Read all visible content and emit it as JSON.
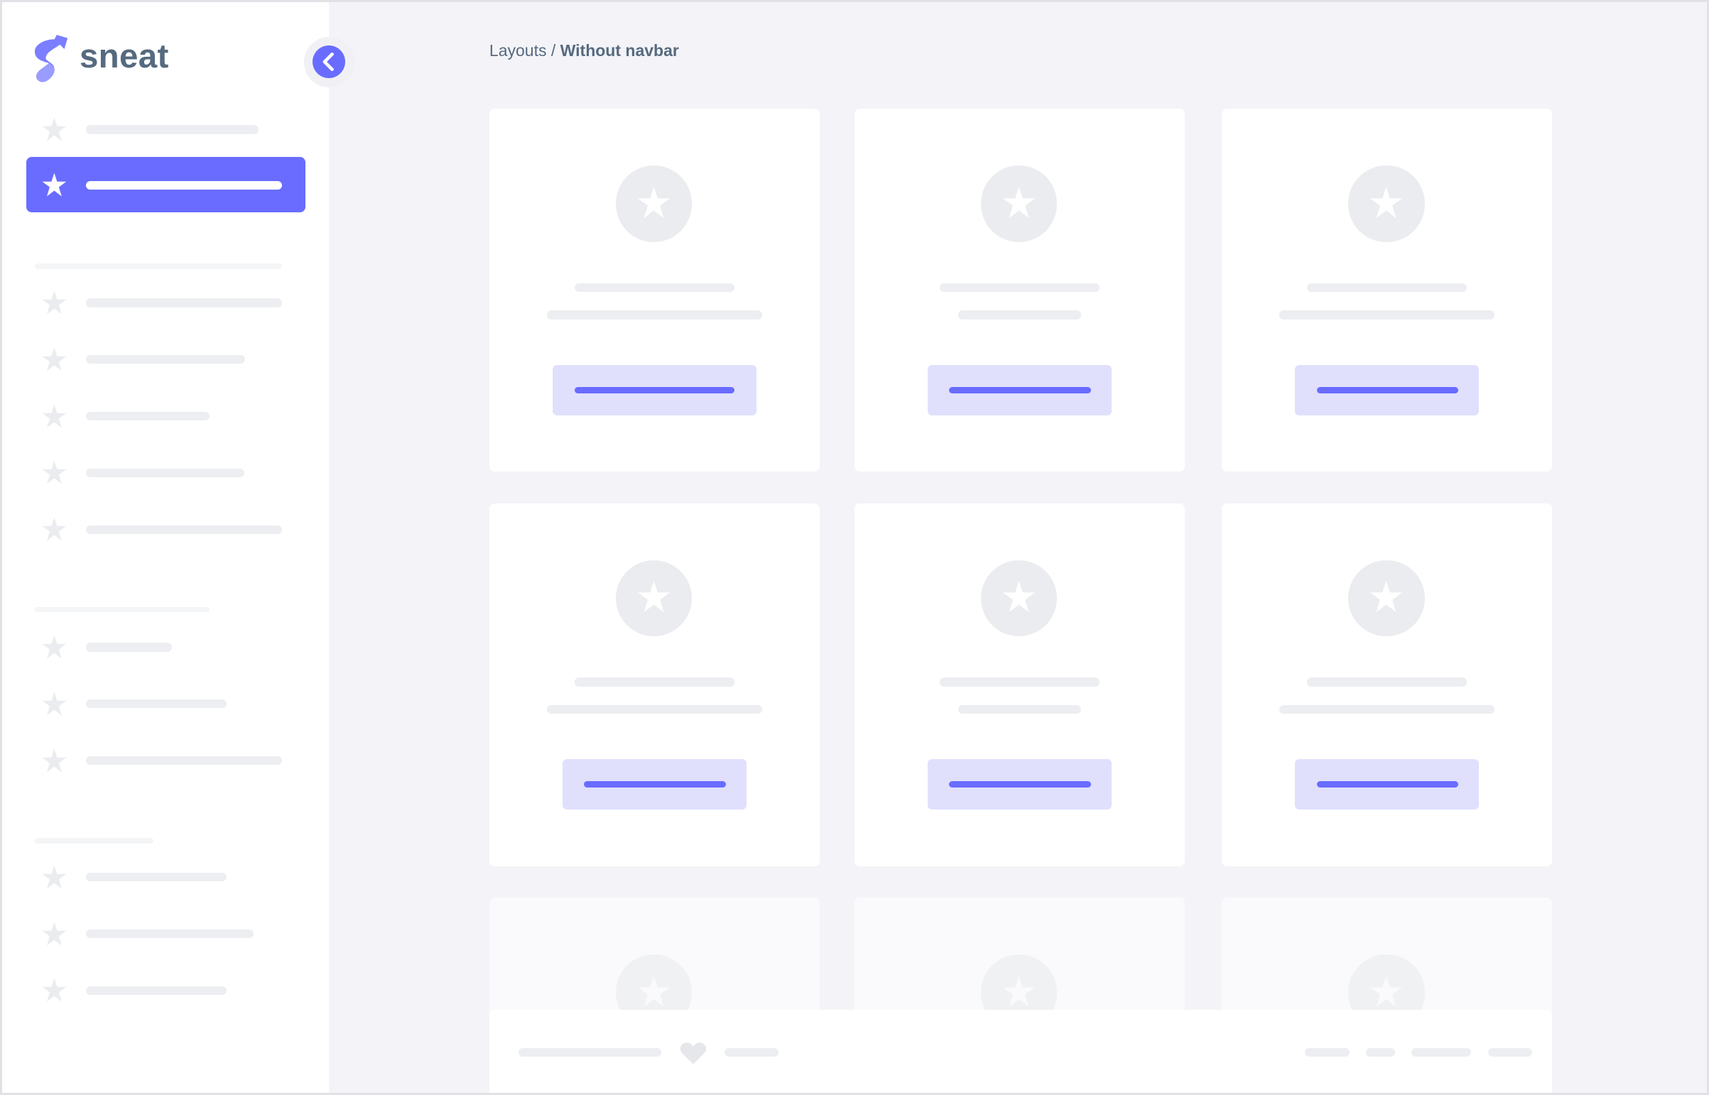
{
  "app": {
    "logo_text": "sneat",
    "brand_color": "#696cff"
  },
  "breadcrumb": {
    "parent": "Layouts",
    "separator": " / ",
    "current": "Without navbar"
  },
  "sidebar": {
    "collapse_icon": "chevron-left-icon",
    "active_index": 1
  }
}
